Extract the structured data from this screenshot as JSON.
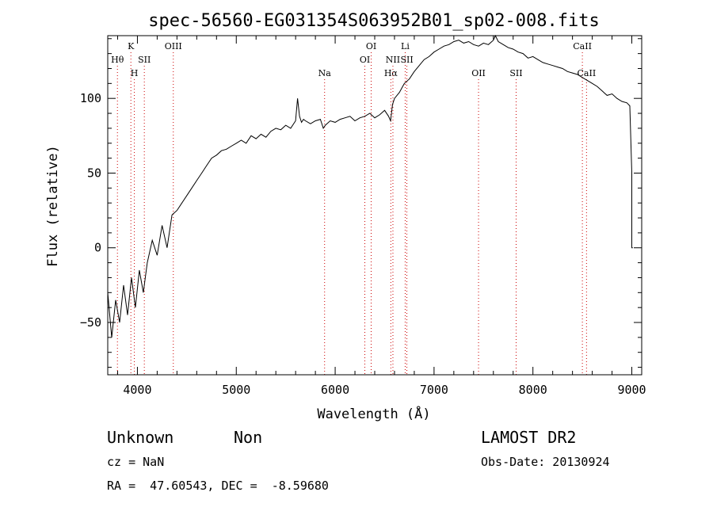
{
  "chart_data": {
    "type": "line",
    "title": "spec-56560-EG031354S063952B01_sp02-008.fits",
    "xlabel": "Wavelength (Å)",
    "ylabel": "Flux (relative)",
    "xlim": [
      3700,
      9100
    ],
    "ylim": [
      -85,
      142
    ],
    "xticks": [
      4000,
      5000,
      6000,
      7000,
      8000,
      9000
    ],
    "yticks": [
      -50,
      0,
      50,
      100
    ],
    "series": [
      {
        "color": "#000000",
        "x": [
          3700,
          3740,
          3780,
          3820,
          3860,
          3900,
          3940,
          3980,
          4020,
          4060,
          4100,
          4150,
          4200,
          4250,
          4300,
          4350,
          4400,
          4450,
          4500,
          4550,
          4600,
          4650,
          4700,
          4750,
          4800,
          4850,
          4900,
          4950,
          5000,
          5050,
          5100,
          5150,
          5200,
          5250,
          5300,
          5350,
          5400,
          5450,
          5500,
          5550,
          5600,
          5620,
          5640,
          5660,
          5680,
          5700,
          5750,
          5800,
          5850,
          5880,
          5900,
          5950,
          6000,
          6050,
          6100,
          6150,
          6200,
          6250,
          6300,
          6350,
          6400,
          6450,
          6500,
          6540,
          6560,
          6580,
          6600,
          6650,
          6700,
          6750,
          6800,
          6850,
          6900,
          6950,
          7000,
          7050,
          7100,
          7150,
          7200,
          7250,
          7300,
          7350,
          7400,
          7450,
          7500,
          7550,
          7600,
          7620,
          7650,
          7700,
          7750,
          7800,
          7850,
          7900,
          7950,
          8000,
          8050,
          8100,
          8150,
          8200,
          8250,
          8300,
          8350,
          8400,
          8450,
          8500,
          8550,
          8600,
          8650,
          8700,
          8750,
          8800,
          8850,
          8900,
          8950,
          8980,
          9000,
          9000,
          9010
        ],
        "y": [
          -30,
          -60,
          -35,
          -50,
          -25,
          -45,
          -20,
          -40,
          -15,
          -30,
          -10,
          5,
          -5,
          15,
          0,
          22,
          25,
          30,
          35,
          40,
          45,
          50,
          55,
          60,
          62,
          65,
          66,
          68,
          70,
          72,
          70,
          75,
          73,
          76,
          74,
          78,
          80,
          79,
          82,
          80,
          85,
          100,
          88,
          84,
          86,
          85,
          83,
          85,
          86,
          80,
          82,
          85,
          84,
          86,
          87,
          88,
          85,
          87,
          88,
          90,
          87,
          89,
          92,
          88,
          85,
          96,
          100,
          104,
          110,
          113,
          118,
          122,
          126,
          128,
          131,
          133,
          135,
          136,
          138,
          139,
          137,
          138,
          136,
          135,
          137,
          136,
          139,
          142,
          138,
          136,
          134,
          133,
          131,
          130,
          127,
          128,
          126,
          124,
          123,
          122,
          121,
          120,
          118,
          117,
          116,
          114,
          112,
          110,
          108,
          105,
          102,
          103,
          100,
          98,
          97,
          95,
          50,
          0,
          0
        ]
      }
    ],
    "line_markers": [
      {
        "label": "Hθ",
        "x": 3798,
        "row": 2
      },
      {
        "label": "K",
        "x": 3934,
        "row": 1
      },
      {
        "label": "H",
        "x": 3969,
        "row": 3
      },
      {
        "label": "SII",
        "x": 4070,
        "row": 2
      },
      {
        "label": "OIII",
        "x": 4363,
        "row": 1
      },
      {
        "label": "Na",
        "x": 5893,
        "row": 3
      },
      {
        "label": "OI",
        "x": 6300,
        "row": 2
      },
      {
        "label": "OI",
        "x": 6364,
        "row": 1
      },
      {
        "label": "Hα",
        "x": 6563,
        "row": 3
      },
      {
        "label": "NII",
        "x": 6584,
        "row": 2
      },
      {
        "label": "Li",
        "x": 6708,
        "row": 1
      },
      {
        "label": "SII",
        "x": 6725,
        "row": 2
      },
      {
        "label": "OII",
        "x": 7450,
        "row": 3
      },
      {
        "label": "SII",
        "x": 7830,
        "row": 3
      },
      {
        "label": "CaII",
        "x": 8500,
        "row": 1
      },
      {
        "label": "CaII",
        "x": 8542,
        "row": 3
      }
    ]
  },
  "info": {
    "class_label": "Unknown",
    "subclass_label": "Non",
    "survey": "LAMOST DR2",
    "cz": "cz = NaN",
    "obs_date": "Obs-Date: 20130924",
    "coords": "RA =  47.60543, DEC =  -8.59680"
  }
}
